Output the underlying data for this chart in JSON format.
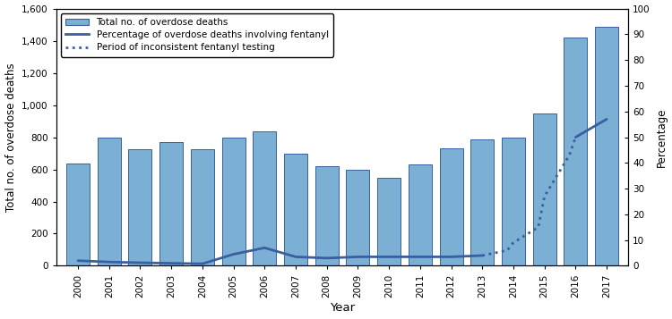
{
  "years": [
    2000,
    2001,
    2002,
    2003,
    2004,
    2005,
    2006,
    2007,
    2008,
    2009,
    2010,
    2011,
    2012,
    2013,
    2014,
    2015,
    2016,
    2017
  ],
  "overdose_deaths": [
    638,
    795,
    725,
    769,
    724,
    800,
    837,
    697,
    617,
    597,
    547,
    630,
    732,
    787,
    800,
    950,
    1420,
    1487
  ],
  "bar_color": "#7bafd4",
  "bar_edge_color": "#3a5fa0",
  "line_color": "#3a5fa0",
  "ylabel_left": "Total no. of overdose deaths",
  "ylabel_right": "Percentage",
  "xlabel": "Year",
  "ylim_left": [
    0,
    1600
  ],
  "ylim_right": [
    0,
    100
  ],
  "yticks_left": [
    0,
    200,
    400,
    600,
    800,
    1000,
    1200,
    1400,
    1600
  ],
  "ytick_labels_left": [
    "0",
    "200",
    "400",
    "600",
    "800",
    "1,000",
    "1,200",
    "1,400",
    "1,600"
  ],
  "yticks_right": [
    0,
    10,
    20,
    30,
    40,
    50,
    60,
    70,
    80,
    90,
    100
  ],
  "solid_years_1": [
    2000,
    2001,
    2002,
    2003,
    2004,
    2005,
    2006,
    2007,
    2008,
    2009,
    2010,
    2011,
    2012,
    2013
  ],
  "solid_vals_1": [
    2.0,
    1.5,
    1.2,
    1.0,
    0.8,
    4.5,
    7.0,
    3.5,
    3.0,
    3.5,
    3.5,
    3.5,
    3.5,
    4.0
  ],
  "solid_years_2": [
    2016,
    2017
  ],
  "solid_vals_2": [
    50.0,
    57.0
  ],
  "dotted_years": [
    2013,
    2013.2,
    2013.4,
    2013.6,
    2013.8,
    2014,
    2014.2,
    2014.4,
    2014.6,
    2014.8,
    2015,
    2015.2,
    2015.4,
    2015.6,
    2015.8,
    2016
  ],
  "dotted_vals": [
    4.0,
    4.5,
    5.0,
    5.5,
    6.0,
    9.0,
    10.5,
    12.0,
    13.5,
    15.0,
    27.0,
    31.0,
    35.0,
    39.0,
    43.0,
    50.0
  ],
  "legend_bar_label": "Total no. of overdose deaths",
  "legend_line_label": "Percentage of overdose deaths involving fentanyl",
  "legend_dot_label": "Period of inconsistent fentanyl testing",
  "background_color": "#ffffff"
}
